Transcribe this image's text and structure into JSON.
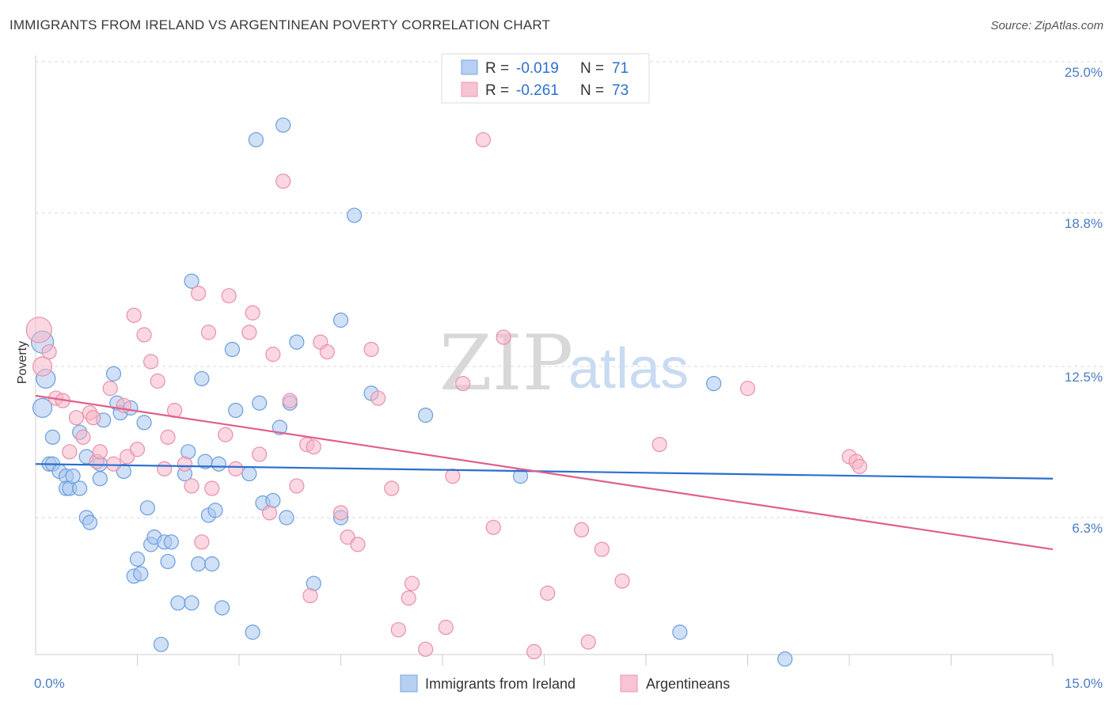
{
  "title": "IMMIGRANTS FROM IRELAND VS ARGENTINEAN POVERTY CORRELATION CHART",
  "source": "Source: ZipAtlas.com",
  "chart_data": {
    "type": "scatter",
    "ylabel": "Poverty",
    "xlim": [
      0,
      15
    ],
    "ylim": [
      0,
      26
    ],
    "x_tick_labels": [
      {
        "value": 0,
        "label": "0.0%"
      },
      {
        "value": 15,
        "label": "15.0%"
      }
    ],
    "y_tick_labels": [
      {
        "value": 6.3,
        "label": "6.3%"
      },
      {
        "value": 12.5,
        "label": "12.5%"
      },
      {
        "value": 18.8,
        "label": "18.8%"
      },
      {
        "value": 25.0,
        "label": "25.0%"
      }
    ],
    "x_minor_ticks": [
      1.5,
      3.0,
      4.5,
      6.0,
      7.5,
      9.0,
      10.5,
      12.0,
      13.5,
      15.0
    ],
    "grid": true,
    "legend_position": "top-center",
    "watermark": {
      "zip": "ZIP",
      "atlas": "atlas"
    },
    "legend": {
      "r_label": "R =",
      "n_label": "N =",
      "entries": [
        {
          "r": "-0.019",
          "n": "71"
        },
        {
          "r": "-0.261",
          "n": "73"
        }
      ]
    },
    "series": [
      {
        "name": "Immigrants from Ireland",
        "color": "#a9c6ee",
        "stroke": "#6b9edc",
        "trend_color": "#2a6fcf",
        "trend": {
          "x0": 0.0,
          "y0": 8.5,
          "x1": 15.0,
          "y1": 7.9
        },
        "points": [
          [
            0.1,
            13.5
          ],
          [
            0.15,
            12.0
          ],
          [
            0.1,
            10.8
          ],
          [
            0.2,
            8.5
          ],
          [
            0.25,
            9.6
          ],
          [
            0.25,
            8.5
          ],
          [
            0.35,
            8.2
          ],
          [
            0.45,
            8.0
          ],
          [
            0.45,
            7.5
          ],
          [
            0.5,
            7.5
          ],
          [
            0.55,
            8.0
          ],
          [
            0.65,
            7.5
          ],
          [
            0.65,
            9.8
          ],
          [
            0.75,
            8.8
          ],
          [
            0.75,
            6.3
          ],
          [
            0.8,
            6.1
          ],
          [
            0.95,
            8.5
          ],
          [
            0.95,
            7.9
          ],
          [
            1.0,
            10.3
          ],
          [
            1.15,
            12.2
          ],
          [
            1.2,
            11.0
          ],
          [
            1.25,
            10.6
          ],
          [
            1.3,
            8.2
          ],
          [
            1.4,
            10.8
          ],
          [
            1.45,
            3.9
          ],
          [
            1.5,
            4.6
          ],
          [
            1.55,
            4.0
          ],
          [
            1.6,
            10.2
          ],
          [
            1.65,
            6.7
          ],
          [
            1.7,
            5.2
          ],
          [
            1.75,
            5.5
          ],
          [
            1.85,
            1.1
          ],
          [
            1.9,
            5.3
          ],
          [
            1.95,
            4.5
          ],
          [
            2.0,
            5.3
          ],
          [
            2.1,
            2.8
          ],
          [
            2.2,
            8.1
          ],
          [
            2.25,
            9.0
          ],
          [
            2.3,
            2.8
          ],
          [
            2.3,
            16.0
          ],
          [
            2.4,
            4.4
          ],
          [
            2.45,
            12.0
          ],
          [
            2.5,
            8.6
          ],
          [
            2.55,
            6.4
          ],
          [
            2.6,
            4.4
          ],
          [
            2.65,
            6.6
          ],
          [
            2.7,
            8.5
          ],
          [
            2.75,
            2.6
          ],
          [
            2.9,
            13.2
          ],
          [
            2.95,
            10.7
          ],
          [
            3.15,
            8.1
          ],
          [
            3.2,
            1.6
          ],
          [
            3.25,
            21.8
          ],
          [
            3.3,
            11.0
          ],
          [
            3.35,
            6.9
          ],
          [
            3.5,
            7.0
          ],
          [
            3.6,
            10.0
          ],
          [
            3.65,
            22.4
          ],
          [
            3.7,
            6.3
          ],
          [
            3.75,
            11.0
          ],
          [
            3.85,
            13.5
          ],
          [
            4.1,
            3.6
          ],
          [
            4.5,
            14.4
          ],
          [
            4.5,
            6.3
          ],
          [
            4.7,
            18.7
          ],
          [
            4.95,
            11.4
          ],
          [
            5.75,
            10.5
          ],
          [
            7.15,
            8.0
          ],
          [
            9.5,
            1.6
          ],
          [
            10.0,
            11.8
          ],
          [
            11.05,
            0.5
          ]
        ]
      },
      {
        "name": "Argentineans",
        "color": "#f7b6c8",
        "stroke": "#e890aa",
        "trend_color": "#e0608a",
        "trend": {
          "x0": 0.0,
          "y0": 11.3,
          "x1": 15.0,
          "y1": 5.0
        },
        "points": [
          [
            0.05,
            14.0
          ],
          [
            0.1,
            12.5
          ],
          [
            0.2,
            13.1
          ],
          [
            0.3,
            11.2
          ],
          [
            0.4,
            11.1
          ],
          [
            0.5,
            9.0
          ],
          [
            0.6,
            10.4
          ],
          [
            0.7,
            9.6
          ],
          [
            0.8,
            10.6
          ],
          [
            0.85,
            10.4
          ],
          [
            0.9,
            8.6
          ],
          [
            0.95,
            9.0
          ],
          [
            1.1,
            11.6
          ],
          [
            1.15,
            8.5
          ],
          [
            1.3,
            10.9
          ],
          [
            1.35,
            8.8
          ],
          [
            1.45,
            14.6
          ],
          [
            1.5,
            9.1
          ],
          [
            1.6,
            13.8
          ],
          [
            1.7,
            12.7
          ],
          [
            1.8,
            11.9
          ],
          [
            1.9,
            8.3
          ],
          [
            1.95,
            9.6
          ],
          [
            2.05,
            10.7
          ],
          [
            2.2,
            8.5
          ],
          [
            2.3,
            7.6
          ],
          [
            2.4,
            15.5
          ],
          [
            2.45,
            5.3
          ],
          [
            2.55,
            13.9
          ],
          [
            2.6,
            7.5
          ],
          [
            2.8,
            9.7
          ],
          [
            2.85,
            15.4
          ],
          [
            2.95,
            8.3
          ],
          [
            3.15,
            13.9
          ],
          [
            3.2,
            14.7
          ],
          [
            3.3,
            8.9
          ],
          [
            3.45,
            6.5
          ],
          [
            3.5,
            13.0
          ],
          [
            3.65,
            20.1
          ],
          [
            3.75,
            11.1
          ],
          [
            3.85,
            7.6
          ],
          [
            4.0,
            9.3
          ],
          [
            4.05,
            3.1
          ],
          [
            4.1,
            9.2
          ],
          [
            4.2,
            13.5
          ],
          [
            4.3,
            13.1
          ],
          [
            4.5,
            6.5
          ],
          [
            4.6,
            5.5
          ],
          [
            4.75,
            5.2
          ],
          [
            4.95,
            13.2
          ],
          [
            5.05,
            11.2
          ],
          [
            5.25,
            7.5
          ],
          [
            5.35,
            1.7
          ],
          [
            5.5,
            3.0
          ],
          [
            5.55,
            3.6
          ],
          [
            5.75,
            0.9
          ],
          [
            6.05,
            1.8
          ],
          [
            6.15,
            8.0
          ],
          [
            6.3,
            11.8
          ],
          [
            6.6,
            21.8
          ],
          [
            6.75,
            5.9
          ],
          [
            6.9,
            13.7
          ],
          [
            7.35,
            0.8
          ],
          [
            7.55,
            3.2
          ],
          [
            8.05,
            5.8
          ],
          [
            8.15,
            1.2
          ],
          [
            8.35,
            5.0
          ],
          [
            8.65,
            3.7
          ],
          [
            9.2,
            9.3
          ],
          [
            10.5,
            11.6
          ],
          [
            12.0,
            8.8
          ],
          [
            12.1,
            8.6
          ],
          [
            12.15,
            8.4
          ]
        ]
      }
    ]
  }
}
